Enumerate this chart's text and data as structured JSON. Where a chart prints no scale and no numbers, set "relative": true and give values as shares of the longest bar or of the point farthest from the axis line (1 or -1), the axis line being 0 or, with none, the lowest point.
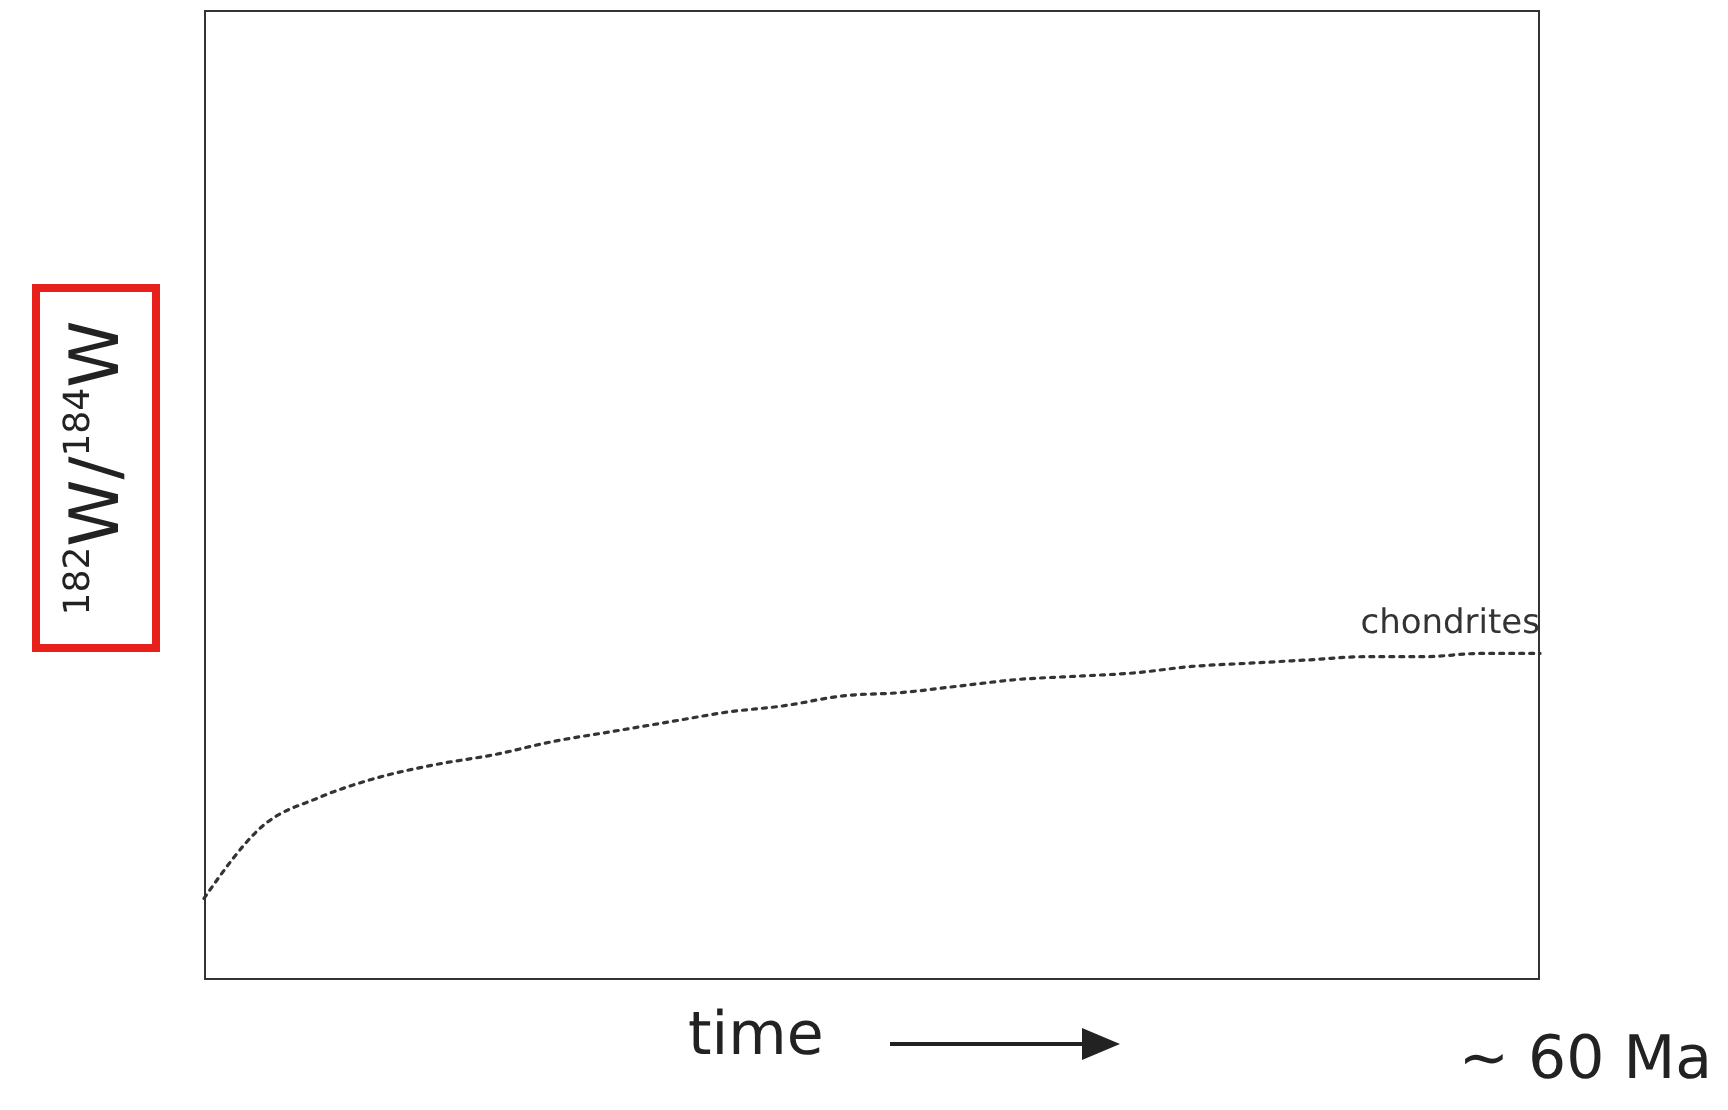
{
  "chart_data": {
    "type": "line",
    "relative": true,
    "ylabel": "$^{182}$W/$^{184}$W",
    "xlabel": "time",
    "annotations": [
      "~ 60 Ma"
    ],
    "categories": [
      null,
      null,
      null,
      null,
      null,
      null,
      null,
      null,
      null,
      null,
      null,
      null,
      null,
      null,
      null,
      null,
      null,
      null,
      null,
      null,
      null,
      null,
      null,
      null
    ],
    "series": [
      {
        "name": "chondrites",
        "color": "#333333",
        "values": [
          0.25,
          0.47,
          0.56,
          0.62,
          0.66,
          0.69,
          0.73,
          0.76,
          0.79,
          0.82,
          0.84,
          0.87,
          0.88,
          0.9,
          0.92,
          0.93,
          0.94,
          0.96,
          0.97,
          0.98,
          0.99,
          0.99,
          1,
          1
        ]
      }
    ],
    "line_style": "dotted",
    "grid": false
  }
}
